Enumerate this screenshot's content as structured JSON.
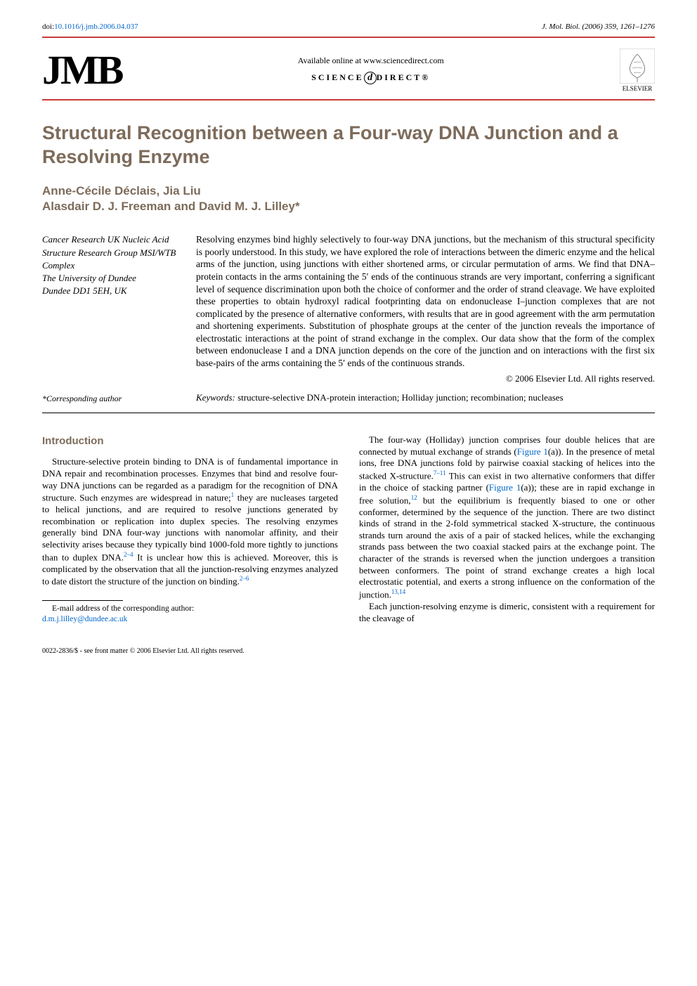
{
  "doi": "doi:10.1016/j.jmb.2006.04.037",
  "journal_ref": "J. Mol. Biol. (2006) 359, 1261–1276",
  "header": {
    "logo_text": "JMB",
    "available_online": "Available online at www.sciencedirect.com",
    "sciencedirect": "SCIENCE",
    "sciencedirect2": "DIRECT®",
    "elsevier": "ELSEVIER"
  },
  "title": "Structural Recognition between a Four-way DNA Junction and a Resolving Enzyme",
  "authors": "Anne-Cécile Déclais, Jia Liu\nAlasdair D. J. Freeman and David M. J. Lilley*",
  "affiliation": "Cancer Research UK Nucleic Acid Structure Research Group MSI/WTB Complex\nThe University of Dundee\nDundee DD1 5EH, UK",
  "abstract": "Resolving enzymes bind highly selectively to four-way DNA junctions, but the mechanism of this structural specificity is poorly understood. In this study, we have explored the role of interactions between the dimeric enzyme and the helical arms of the junction, using junctions with either shortened arms, or circular permutation of arms. We find that DNA–protein contacts in the arms containing the 5′ ends of the continuous strands are very important, conferring a significant level of sequence discrimination upon both the choice of conformer and the order of strand cleavage. We have exploited these properties to obtain hydroxyl radical footprinting data on endonuclease I–junction complexes that are not complicated by the presence of alternative conformers, with results that are in good agreement with the arm permutation and shortening experiments. Substitution of phosphate groups at the center of the junction reveals the importance of electrostatic interactions at the point of strand exchange in the complex. Our data show that the form of the complex between endonuclease I and a DNA junction depends on the core of the junction and on interactions with the first six base-pairs of the arms containing the 5′ ends of the continuous strands.",
  "copyright": "© 2006 Elsevier Ltd. All rights reserved.",
  "keywords_label": "Keywords:",
  "keywords": " structure-selective DNA-protein interaction; Holliday junction; recombination; nucleases",
  "corresponding": "*Corresponding author",
  "intro_heading": "Introduction",
  "col1_p1": "Structure-selective protein binding to DNA is of fundamental importance in DNA repair and recombination processes. Enzymes that bind and resolve four-way DNA junctions can be regarded as a paradigm for the recognition of DNA structure. Such enzymes are widespread in nature;",
  "col1_ref1": "1",
  "col1_p1b": " they are nucleases targeted to helical junctions, and are required to resolve junctions generated by recombination or replication into duplex species. The resolving enzymes generally bind DNA four-way junctions with nanomolar affinity, and their selectivity arises because they typically bind 1000-fold more tightly to junctions than to duplex DNA.",
  "col1_ref2": "2–4",
  "col1_p1c": " It is unclear how this is achieved. Moreover, this is complicated by the observation that all the junction-resolving enzymes analyzed to date distort the structure of the junction on binding.",
  "col1_ref3": "2–6",
  "col2_p1": "The four-way (Holliday) junction comprises four double helices that are connected by mutual exchange of strands (",
  "col2_fig1": "Figure 1",
  "col2_p1b": "(a)). In the presence of metal ions, free DNA junctions fold by pairwise coaxial stacking of helices into the stacked X-structure.",
  "col2_ref1": "7–11",
  "col2_p1c": " This can exist in two alternative conformers that differ in the choice of stacking partner (",
  "col2_fig1b": "Figure 1",
  "col2_p1d": "(a)); these are in rapid exchange in free solution,",
  "col2_ref2": "12",
  "col2_p1e": " but the equilibrium is frequently biased to one or other conformer, determined by the sequence of the junction. There are two distinct kinds of strand in the 2-fold symmetrical stacked X-structure, the continuous strands turn around the axis of a pair of stacked helices, while the exchanging strands pass between the two coaxial stacked pairs at the exchange point. The character of the strands is reversed when the junction undergoes a transition between conformers. The point of strand exchange creates a high local electrostatic potential, and exerts a strong influence on the conformation of the junction.",
  "col2_ref3": "13,14",
  "col2_p2": "Each junction-resolving enzyme is dimeric, consistent with a requirement for the cleavage of",
  "footnote_label": "E-mail address of the corresponding author:",
  "footnote_email": "d.m.j.lilley@dundee.ac.uk",
  "footer": "0022-2836/$ - see front matter © 2006 Elsevier Ltd. All rights reserved.",
  "colors": {
    "accent": "#c93a3a",
    "heading": "#7d6b5a",
    "link": "#0066cc",
    "text": "#000000",
    "background": "#ffffff"
  }
}
